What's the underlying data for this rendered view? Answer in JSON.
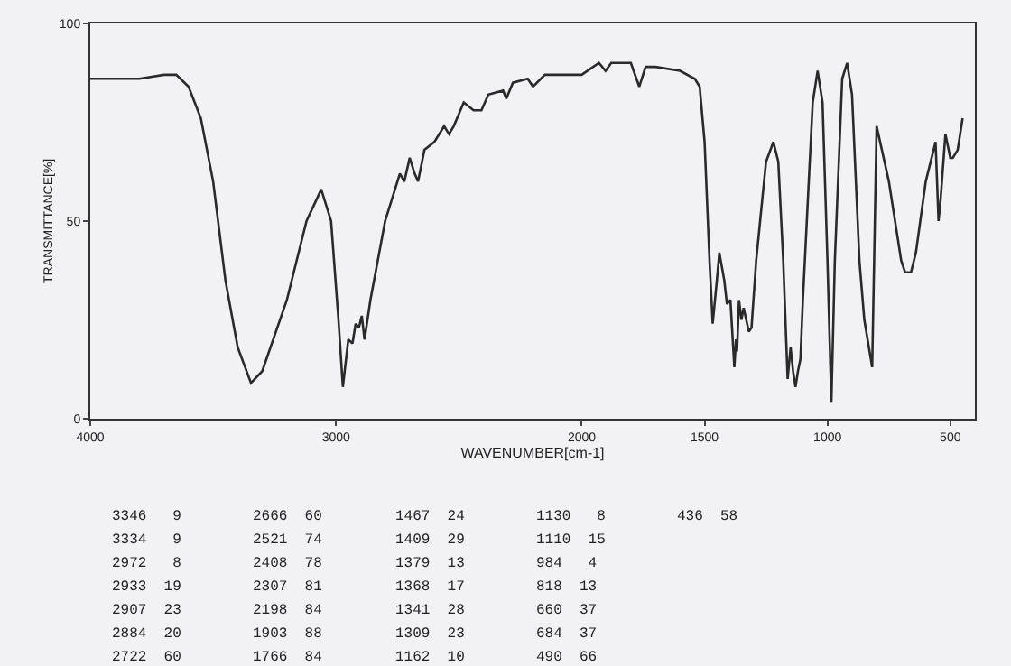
{
  "chart_data": {
    "type": "line",
    "xlabel": "WAVENUMBER[cm-1]",
    "ylabel": "TRANSMITTANCE[%]",
    "x": [
      4000,
      3800,
      3700,
      3650,
      3600,
      3550,
      3500,
      3450,
      3400,
      3346,
      3300,
      3200,
      3120,
      3060,
      3020,
      2990,
      2972,
      2950,
      2933,
      2920,
      2907,
      2895,
      2884,
      2860,
      2800,
      2760,
      2740,
      2722,
      2700,
      2680,
      2666,
      2640,
      2600,
      2560,
      2540,
      2521,
      2480,
      2440,
      2408,
      2380,
      2320,
      2307,
      2280,
      2220,
      2198,
      2150,
      2000,
      1930,
      1903,
      1880,
      1800,
      1766,
      1740,
      1700,
      1600,
      1540,
      1520,
      1500,
      1480,
      1467,
      1450,
      1440,
      1420,
      1409,
      1395,
      1379,
      1372,
      1368,
      1360,
      1350,
      1341,
      1320,
      1309,
      1290,
      1250,
      1220,
      1200,
      1180,
      1162,
      1150,
      1140,
      1130,
      1120,
      1110,
      1100,
      1060,
      1040,
      1020,
      1000,
      984,
      970,
      940,
      920,
      900,
      870,
      850,
      818,
      800,
      750,
      700,
      684,
      670,
      660,
      640,
      600,
      560,
      548,
      540,
      520,
      500,
      490,
      470,
      450
    ],
    "values": [
      86,
      86,
      87,
      87,
      84,
      76,
      60,
      35,
      18,
      9,
      12,
      30,
      50,
      58,
      50,
      25,
      8,
      20,
      19,
      24,
      23,
      26,
      20,
      30,
      50,
      58,
      62,
      60,
      66,
      62,
      60,
      68,
      70,
      74,
      72,
      74,
      80,
      78,
      78,
      82,
      83,
      81,
      85,
      86,
      84,
      87,
      87,
      90,
      88,
      90,
      90,
      84,
      89,
      89,
      88,
      86,
      84,
      70,
      40,
      24,
      35,
      42,
      35,
      29,
      30,
      13,
      20,
      17,
      30,
      25,
      28,
      22,
      23,
      40,
      65,
      70,
      65,
      40,
      10,
      18,
      12,
      8,
      12,
      15,
      30,
      80,
      88,
      80,
      40,
      4,
      40,
      86,
      90,
      82,
      40,
      25,
      13,
      74,
      60,
      40,
      37,
      37,
      37,
      42,
      60,
      70,
      50,
      55,
      72,
      66,
      66,
      68,
      76
    ],
    "color": "#2a2a2a",
    "line_style": "solid",
    "marker": "none",
    "grid": false,
    "xlim": [
      4000,
      400
    ],
    "xticks": [
      4000,
      3000,
      2000,
      1500,
      1000,
      500
    ],
    "ylim": [
      0,
      100
    ],
    "yticks": [
      0,
      50,
      100
    ],
    "annotations": [
      "3346   9",
      "3334   9",
      "2972   8",
      "2933  19",
      "2907  23",
      "2884  20",
      "2722  60",
      "2666  60",
      "2521  74",
      "2408  78",
      "2307  81",
      "2198  84",
      "1903  88",
      "1766  84",
      "1467  24",
      "1409  29",
      "1379  13",
      "1368  17",
      "1341  28",
      "1309  23",
      "1162  10",
      "1130   8",
      "1110  15",
      "984   4",
      "818  13",
      "660  37",
      "684  37",
      "490  66",
      "436  58"
    ]
  }
}
